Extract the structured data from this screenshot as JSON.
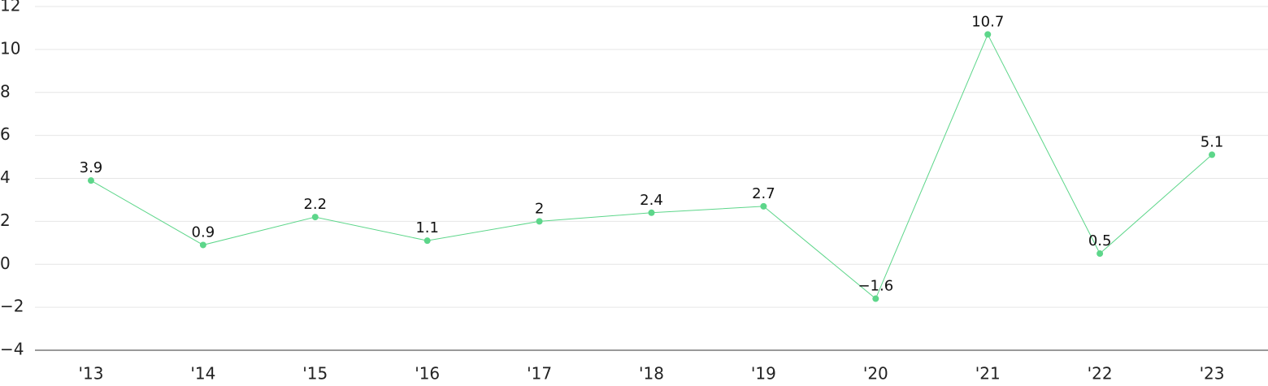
{
  "chart_data": {
    "type": "line",
    "categories": [
      "'13",
      "'14",
      "'15",
      "'16",
      "'17",
      "'18",
      "'19",
      "'20",
      "'21",
      "'22",
      "'23"
    ],
    "values": [
      3.9,
      0.9,
      2.2,
      1.1,
      2,
      2.4,
      2.7,
      -1.6,
      10.7,
      0.5,
      5.1
    ],
    "value_labels": [
      "3.9",
      "0.9",
      "2.2",
      "1.1",
      "2",
      "2.4",
      "2.7",
      "−1.6",
      "10.7",
      "0.5",
      "5.1"
    ],
    "color": "#5dd68a",
    "ylim": [
      -4,
      12
    ],
    "yticks": [
      {
        "value": -4,
        "label": "−4"
      },
      {
        "value": -2,
        "label": "−2"
      },
      0,
      2,
      4,
      6,
      8,
      10,
      12
    ],
    "grid": true
  }
}
